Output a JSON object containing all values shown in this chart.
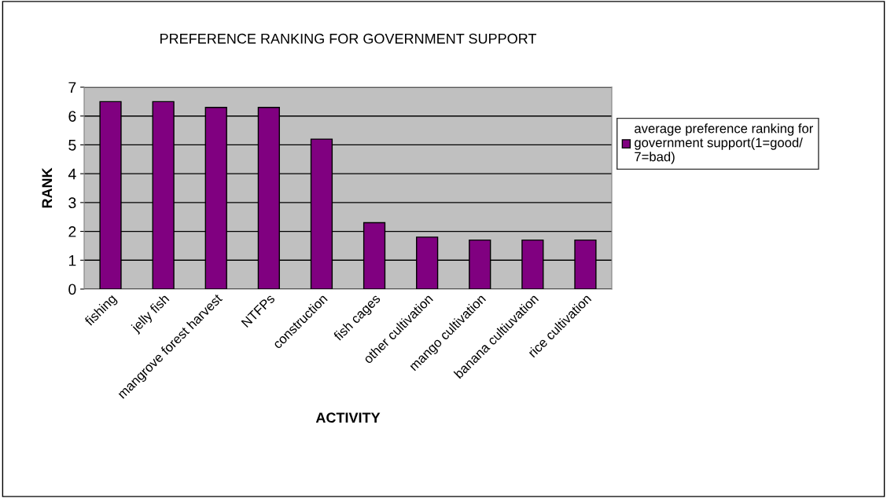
{
  "chart_data": {
    "type": "bar",
    "title": "PREFERENCE RANKING FOR GOVERNMENT SUPPORT",
    "xlabel": "ACTIVITY",
    "ylabel": "RANK",
    "categories": [
      "fishing",
      "jelly fish",
      "mangrove forest harvest",
      "NTFPs",
      "construction",
      "fish cages",
      "other cultivation",
      "mango cultivation",
      "banana cultiuvation",
      "rice cultivation"
    ],
    "series": [
      {
        "name": "average preference ranking for government support(1=good/ 7=bad)",
        "color": "#800080",
        "values": [
          6.5,
          6.5,
          6.3,
          6.3,
          5.2,
          2.3,
          1.8,
          1.7,
          1.7,
          1.7
        ]
      }
    ],
    "ylim": [
      0,
      7
    ],
    "yticks": [
      0,
      1,
      2,
      3,
      4,
      5,
      6,
      7
    ],
    "grid": "y",
    "legend": "right"
  }
}
